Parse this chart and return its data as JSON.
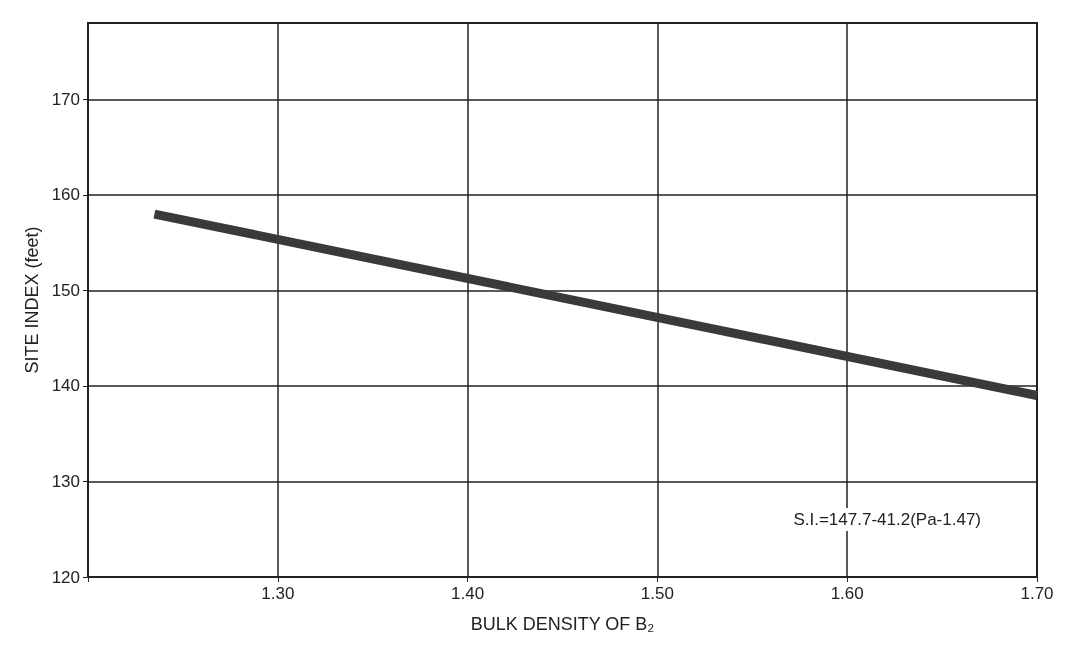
{
  "chart_data": {
    "type": "line",
    "xlabel": "BULK DENSITY OF B₂",
    "ylabel": "SITE INDEX (feet)",
    "x": [
      1.235,
      1.7
    ],
    "series": [
      {
        "color": "#3a3a3a",
        "values": [
          158,
          139
        ]
      }
    ],
    "xlim": [
      1.2,
      1.7
    ],
    "xticks": [
      {
        "value": 1.2,
        "label": null
      },
      {
        "value": 1.3,
        "label": "1.30"
      },
      {
        "value": 1.4,
        "label": "1.40"
      },
      {
        "value": 1.5,
        "label": "1.50"
      },
      {
        "value": 1.6,
        "label": "1.60"
      },
      {
        "value": 1.7,
        "label": "1.70"
      }
    ],
    "ylim": [
      120,
      178
    ],
    "yticks": [
      120,
      130,
      140,
      150,
      160,
      170
    ],
    "grid": true,
    "marker": "none",
    "line_style": "solid",
    "annotations": [
      "S.I.=147.7-41.2(Pa-1.47)"
    ]
  }
}
